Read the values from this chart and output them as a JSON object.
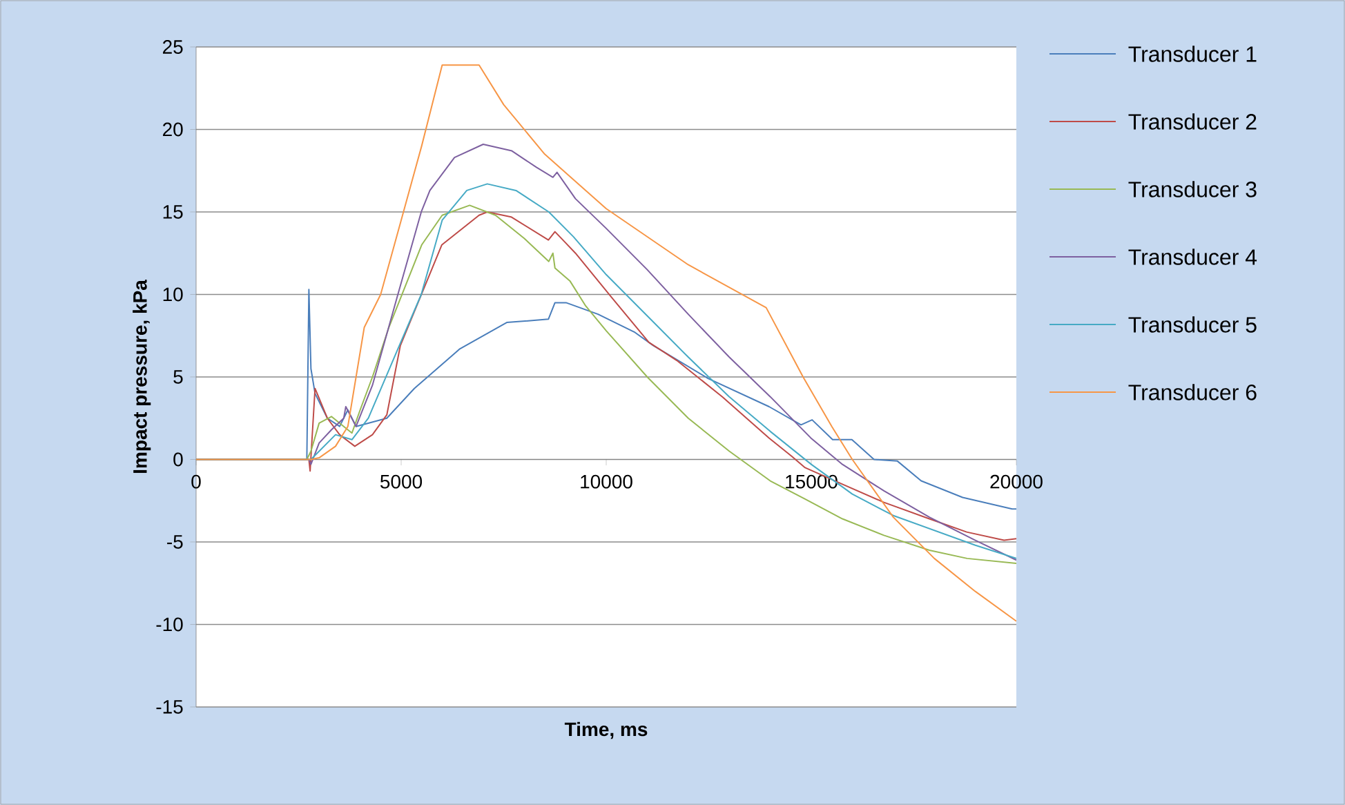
{
  "chart_data": {
    "type": "line",
    "xlabel": "Time, ms",
    "ylabel": "Impact pressure, kPa",
    "xlim": [
      0,
      20000
    ],
    "ylim": [
      -15,
      25
    ],
    "xticks": [
      0,
      5000,
      10000,
      15000,
      20000
    ],
    "yticks": [
      -15,
      -10,
      -5,
      0,
      5,
      10,
      15,
      20,
      25
    ],
    "grid": "y",
    "legend": "right",
    "marker": "none",
    "line_style": "solid",
    "series": [
      {
        "name": "Transducer 1",
        "color": "#4a7ebb",
        "x": [
          0,
          2700,
          2750,
          2800,
          2900,
          3200,
          3500,
          3700,
          3900,
          4650,
          5320,
          6430,
          7575,
          8590,
          8750,
          9020,
          9800,
          10700,
          11150,
          12490,
          13970,
          14750,
          15020,
          15520,
          15990,
          16530,
          17100,
          17680,
          18690,
          19900,
          20000
        ],
        "values": [
          0,
          0,
          10.3,
          5.5,
          4.0,
          2.5,
          2.0,
          3.0,
          2.0,
          2.5,
          4.3,
          6.7,
          8.3,
          8.5,
          9.5,
          9.5,
          8.8,
          7.7,
          6.9,
          4.9,
          3.2,
          2.1,
          2.4,
          1.2,
          1.2,
          0,
          -0.1,
          -1.3,
          -2.3,
          -3.0,
          -3.0
        ]
      },
      {
        "name": "Transducer 2",
        "color": "#be4b48",
        "x": [
          0,
          2750,
          2780,
          2900,
          3200,
          3500,
          3870,
          4300,
          4650,
          4980,
          5990,
          6900,
          7100,
          7680,
          8590,
          8750,
          9020,
          9250,
          10140,
          11040,
          11720,
          12830,
          13970,
          14520,
          14850,
          15760,
          16770,
          17880,
          18790,
          19700,
          20000
        ],
        "values": [
          0,
          0,
          -0.7,
          4.3,
          2.5,
          1.5,
          0.8,
          1.5,
          2.7,
          6.9,
          13.0,
          14.8,
          15.0,
          14.7,
          13.3,
          13.8,
          13.1,
          12.5,
          9.8,
          7.1,
          6.0,
          3.8,
          1.3,
          0.2,
          -0.5,
          -1.5,
          -2.6,
          -3.6,
          -4.4,
          -4.9,
          -4.8
        ]
      },
      {
        "name": "Transducer 3",
        "color": "#98b954",
        "x": [
          0,
          2700,
          2800,
          3000,
          3300,
          3600,
          3800,
          4000,
          4300,
          4700,
          5100,
          5500,
          6000,
          6670,
          7300,
          8000,
          8600,
          8700,
          8750,
          9120,
          9500,
          10000,
          11000,
          12000,
          13000,
          14000,
          14850,
          15760,
          16770,
          17880,
          18800,
          20000
        ],
        "values": [
          0,
          0,
          0.5,
          2.2,
          2.6,
          2.0,
          1.6,
          3.0,
          5.0,
          8.0,
          10.5,
          13.0,
          14.8,
          15.4,
          14.8,
          13.4,
          12.0,
          12.5,
          11.6,
          10.8,
          9.3,
          7.8,
          5.0,
          2.5,
          0.5,
          -1.3,
          -2.4,
          -3.6,
          -4.6,
          -5.5,
          -6.0,
          -6.3
        ]
      },
      {
        "name": "Transducer 4",
        "color": "#7d60a0",
        "x": [
          0,
          2750,
          2800,
          3000,
          3300,
          3600,
          3650,
          3900,
          4300,
          4920,
          5490,
          5700,
          6300,
          7000,
          7700,
          8300,
          8700,
          8800,
          9250,
          10000,
          11000,
          12000,
          13000,
          14000,
          14990,
          15760,
          16770,
          17880,
          19000,
          20000
        ],
        "values": [
          0,
          0,
          -0.3,
          1.0,
          1.8,
          2.5,
          3.2,
          2.0,
          4.5,
          10.0,
          15.0,
          16.3,
          18.3,
          19.1,
          18.7,
          17.7,
          17.1,
          17.4,
          15.8,
          14.0,
          11.5,
          8.8,
          6.2,
          3.8,
          1.3,
          -0.3,
          -1.9,
          -3.5,
          -4.9,
          -6.1
        ]
      },
      {
        "name": "Transducer 5",
        "color": "#46aac5",
        "x": [
          0,
          2800,
          3000,
          3400,
          3800,
          4200,
          4800,
          5490,
          6000,
          6600,
          7100,
          7800,
          8600,
          9200,
          10000,
          11000,
          12000,
          13000,
          14000,
          15000,
          16000,
          17000,
          18000,
          19000,
          20000
        ],
        "values": [
          0,
          0,
          0.5,
          1.5,
          1.2,
          2.5,
          6.0,
          10.0,
          14.5,
          16.3,
          16.7,
          16.3,
          15.0,
          13.5,
          11.2,
          8.7,
          6.2,
          3.8,
          1.7,
          -0.3,
          -2.1,
          -3.4,
          -4.3,
          -5.2,
          -6.0
        ]
      },
      {
        "name": "Transducer 6",
        "color": "#f79646",
        "x": [
          0,
          2800,
          3000,
          3400,
          3700,
          3900,
          4100,
          4500,
          5000,
          5500,
          6000,
          6900,
          7500,
          8500,
          10000,
          12000,
          13900,
          14800,
          15500,
          16000,
          17000,
          18000,
          19000,
          20000
        ],
        "values": [
          0,
          0,
          0.1,
          0.8,
          2.0,
          5.0,
          8.0,
          10.0,
          14.5,
          19.0,
          23.9,
          23.9,
          21.5,
          18.5,
          15.2,
          11.8,
          9.2,
          5.0,
          2.0,
          0,
          -3.5,
          -6.0,
          -8.0,
          -9.8
        ]
      }
    ]
  }
}
